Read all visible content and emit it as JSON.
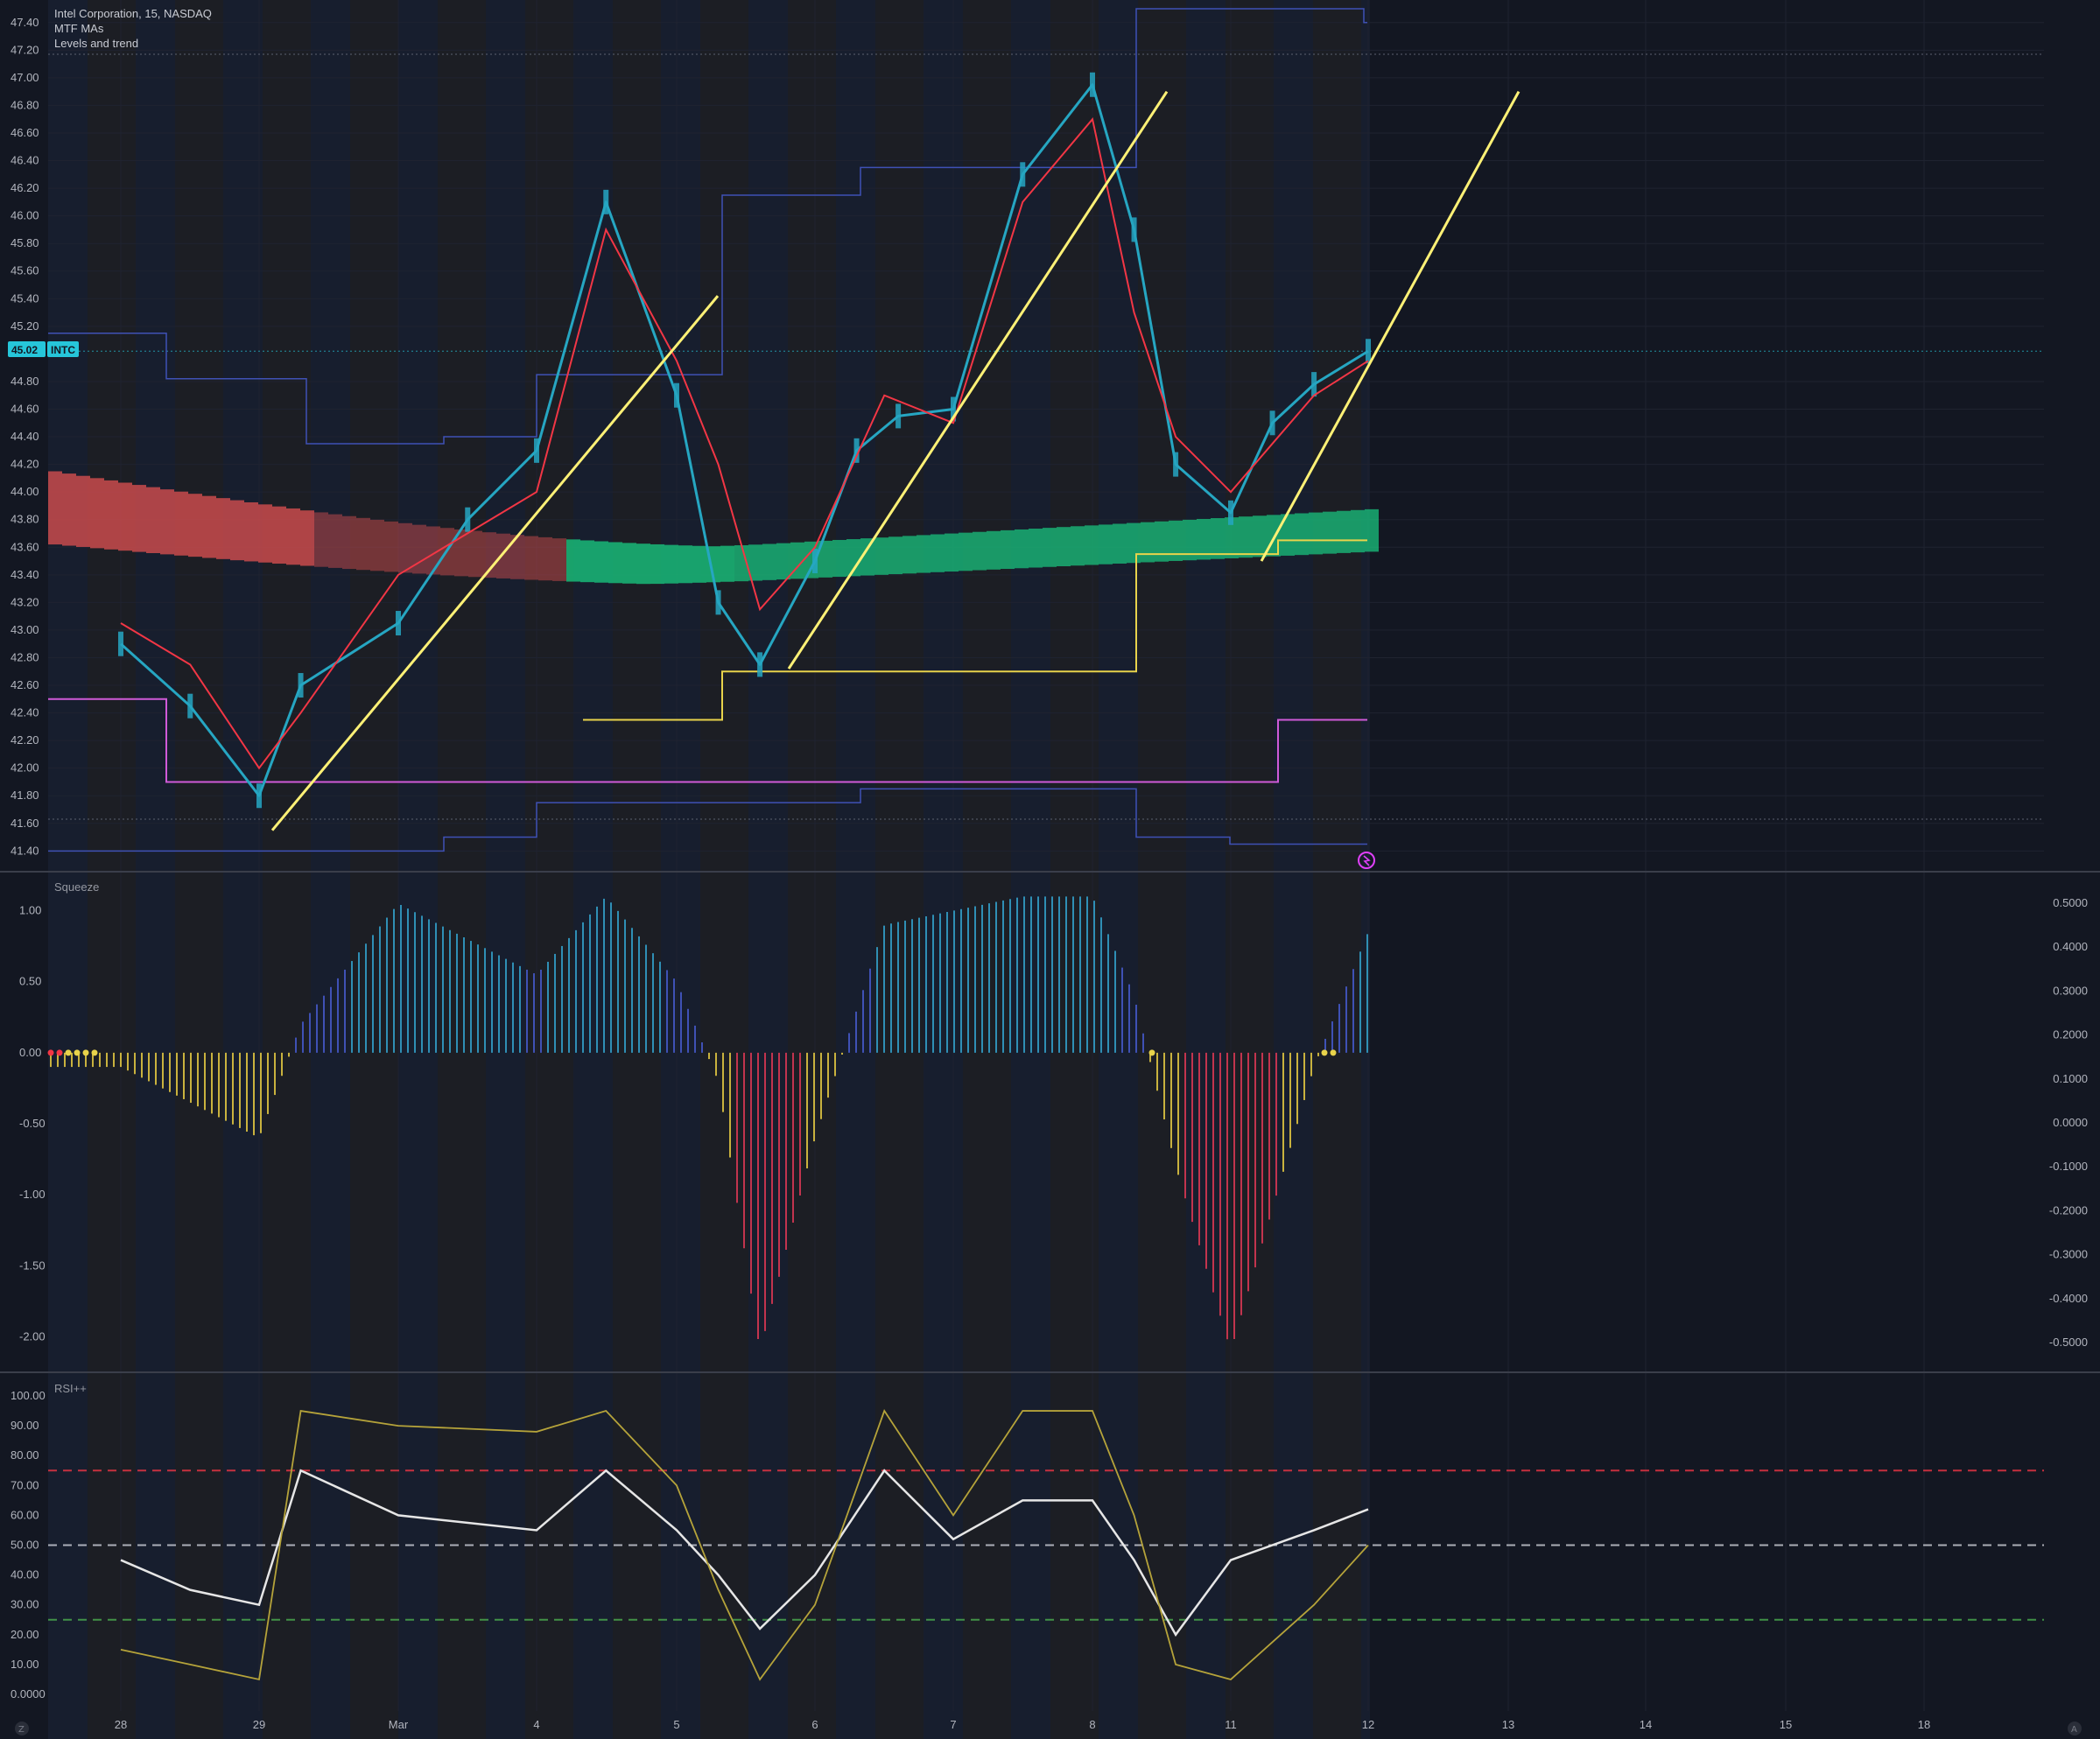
{
  "header": {
    "symbol_line": "Intel Corporation, 15, NASDAQ",
    "indicator_1": "MTF MAs",
    "indicator_2": "Levels and trend"
  },
  "price_badge": {
    "value": "45.02",
    "ticker": "INTC",
    "color": "#26c6da"
  },
  "panes": {
    "squeeze_title": "Squeeze",
    "rsi_title": "RSI++"
  },
  "colors": {
    "background": "#131722",
    "session_band_blue": "#1c2438",
    "session_band_gray": "#252527",
    "candle": "#26a6c2",
    "ma_fast": "#f23645",
    "ma_slow": "#b2294a",
    "ma_green": "#4caf50",
    "cloud_red": "#e05252",
    "cloud_green": "#19c37d",
    "levels_blue": "#3f51b5",
    "level_yellow": "#e8d34b",
    "level_magenta": "#d05ad8",
    "trendline": "#fff176",
    "rsi_main": "#e6e6e6",
    "rsi_secondary": "#b5a33a"
  },
  "chart_data": [
    {
      "type": "line",
      "pane": "price",
      "title": "Intel Corporation, 15, NASDAQ",
      "x_tick_labels": [
        "28",
        "29",
        "Mar",
        "4",
        "5",
        "6",
        "7",
        "8",
        "11",
        "12",
        "13",
        "14",
        "15",
        "18"
      ],
      "y_tick_labels": [
        "47.40",
        "47.20",
        "47.00",
        "46.80",
        "46.60",
        "46.40",
        "46.20",
        "46.00",
        "45.80",
        "45.60",
        "45.40",
        "45.20",
        "44.80",
        "44.60",
        "44.40",
        "44.20",
        "44.00",
        "43.80",
        "43.60",
        "43.40",
        "43.20",
        "43.00",
        "42.80",
        "42.60",
        "42.40",
        "42.20",
        "42.00",
        "41.80",
        "41.60",
        "41.40"
      ],
      "ylim": [
        41.25,
        47.5
      ],
      "last_price": 45.02,
      "series": [
        {
          "name": "INTC",
          "x": [
            "28",
            "28.5",
            "29",
            "29.3",
            "Mar",
            "Mar.5",
            "4",
            "4.5",
            "5",
            "5.3",
            "5.6",
            "6",
            "6.3",
            "6.6",
            "7",
            "7.5",
            "8",
            "8.3",
            "8.6",
            "11",
            "11.3",
            "11.6",
            "12"
          ],
          "values": [
            42.9,
            42.45,
            41.8,
            42.6,
            43.05,
            43.8,
            44.3,
            46.1,
            44.7,
            43.2,
            42.75,
            43.5,
            44.3,
            44.55,
            44.6,
            46.3,
            46.95,
            45.9,
            44.2,
            43.85,
            44.5,
            44.78,
            45.02
          ]
        },
        {
          "name": "MA fast",
          "x": [
            "28",
            "28.5",
            "29",
            "29.3",
            "Mar",
            "4",
            "4.5",
            "5",
            "5.3",
            "5.6",
            "6",
            "6.5",
            "7",
            "7.5",
            "8",
            "8.3",
            "8.6",
            "11",
            "11.6",
            "12"
          ],
          "values": [
            43.05,
            42.75,
            42.0,
            42.4,
            43.4,
            44.0,
            45.9,
            44.95,
            44.2,
            43.15,
            43.6,
            44.7,
            44.5,
            46.1,
            46.7,
            45.3,
            44.4,
            44.0,
            44.7,
            44.95
          ]
        }
      ],
      "levels": {
        "blue_upper_steps": [
          45.15,
          44.82,
          44.35,
          44.4,
          44.85,
          46.15,
          46.35,
          46.35,
          47.5,
          47.4
        ],
        "blue_lower_steps": [
          41.4,
          41.4,
          41.5,
          41.75,
          41.75,
          41.85,
          41.5,
          41.45
        ],
        "yellow_steps": [
          42.35,
          42.7,
          43.55,
          43.65
        ],
        "magenta_steps": [
          42.5,
          41.9,
          42.35
        ]
      }
    },
    {
      "type": "bar",
      "pane": "squeeze",
      "title": "Squeeze",
      "y_tick_labels": [
        "1.00",
        "0.50",
        "0.00",
        "-0.50",
        "-1.00",
        "-1.50",
        "-2.00"
      ],
      "y2_tick_labels": [
        "0.5000",
        "0.4000",
        "0.3000",
        "0.2000",
        "0.1000",
        "0.0000",
        "-0.1000",
        "-0.2000",
        "-0.3000",
        "-0.4000",
        "-0.5000"
      ],
      "ylim": [
        -2.25,
        1.25
      ],
      "series": [
        {
          "name": "momentum",
          "x": [
            "28",
            "28.5",
            "29",
            "29.3",
            "Mar",
            "4",
            "4.5",
            "5",
            "5.3",
            "5.6",
            "6",
            "6.5",
            "7",
            "7.5",
            "8",
            "8.3",
            "8.6",
            "11",
            "11.6",
            "12"
          ],
          "values": [
            -0.1,
            -0.35,
            -0.6,
            0.2,
            1.05,
            0.55,
            1.1,
            0.5,
            -0.2,
            -2.1,
            -0.6,
            0.9,
            1.0,
            1.1,
            1.1,
            0.4,
            -0.8,
            -2.1,
            -0.1,
            0.85
          ]
        }
      ]
    },
    {
      "type": "line",
      "pane": "rsi",
      "title": "RSI++",
      "y_tick_labels": [
        "100.00",
        "90.00",
        "80.00",
        "70.00",
        "60.00",
        "50.00",
        "40.00",
        "30.00",
        "20.00",
        "10.00",
        "0.0000"
      ],
      "ylim": [
        0,
        100
      ],
      "reference_lines": [
        75,
        50,
        25
      ],
      "series": [
        {
          "name": "RSI",
          "x": [
            "28",
            "28.5",
            "29",
            "29.3",
            "Mar",
            "4",
            "4.5",
            "5",
            "5.3",
            "5.6",
            "6",
            "6.5",
            "7",
            "7.5",
            "8",
            "8.3",
            "8.6",
            "11",
            "11.6",
            "12"
          ],
          "values": [
            45,
            35,
            30,
            75,
            60,
            55,
            75,
            55,
            40,
            22,
            40,
            75,
            52,
            65,
            65,
            45,
            20,
            45,
            55,
            62
          ]
        },
        {
          "name": "RSI secondary",
          "x": [
            "28",
            "28.5",
            "29",
            "29.3",
            "Mar",
            "4",
            "4.5",
            "5",
            "5.3",
            "5.6",
            "6",
            "6.5",
            "7",
            "7.5",
            "8",
            "8.3",
            "8.6",
            "11",
            "11.6",
            "12"
          ],
          "values": [
            15,
            10,
            5,
            95,
            90,
            88,
            95,
            70,
            35,
            5,
            30,
            95,
            60,
            95,
            95,
            60,
            10,
            5,
            30,
            50
          ]
        }
      ]
    }
  ]
}
